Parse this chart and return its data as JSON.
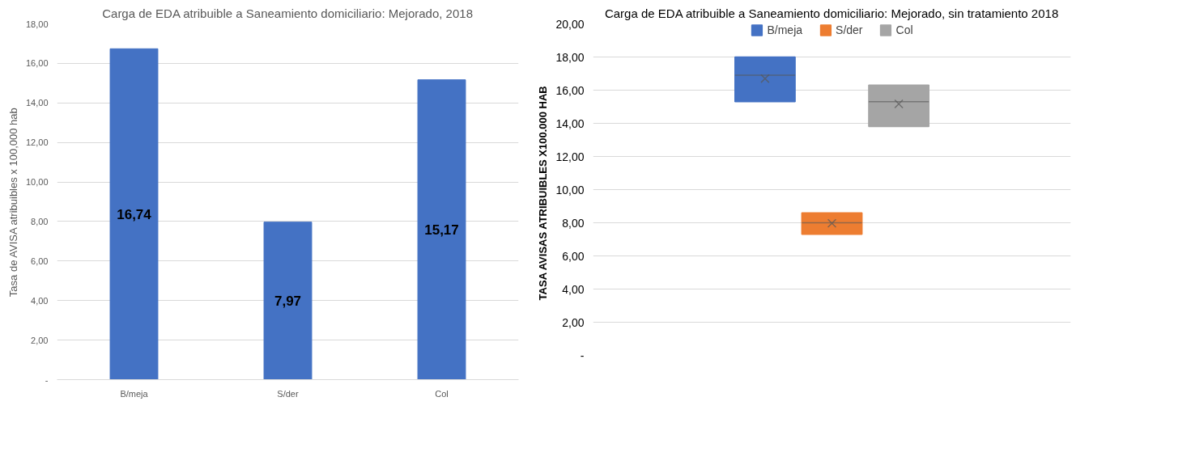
{
  "chart_data": [
    {
      "type": "bar",
      "title": "Carga de EDA atribuible a Saneamiento domiciliario: Mejorado, 2018",
      "ylabel": "Tasa de AVISA atribuibles x 100,000 hab",
      "categories": [
        "B/meja",
        "S/der",
        "Col"
      ],
      "values": [
        16.74,
        7.97,
        15.17
      ],
      "color": "#4472c4",
      "value_labels": [
        "16,74",
        "7,97",
        "15,17"
      ],
      "ylim": [
        0,
        18
      ],
      "yticks": [
        {
          "value": 0,
          "label": "-"
        },
        {
          "value": 2,
          "label": "2,00"
        },
        {
          "value": 4,
          "label": "4,00"
        },
        {
          "value": 6,
          "label": "6,00"
        },
        {
          "value": 8,
          "label": "8,00"
        },
        {
          "value": 10,
          "label": "10,00"
        },
        {
          "value": 12,
          "label": "12,00"
        },
        {
          "value": 14,
          "label": "14,00"
        },
        {
          "value": 16,
          "label": "16,00"
        },
        {
          "value": 18,
          "label": "18,00"
        }
      ],
      "grid": "y"
    },
    {
      "type": "box",
      "title": "Carga de EDA atribuible a Saneamiento domiciliario: Mejorado, sin tratamiento 2018",
      "ylabel": "TASA AVISAS ATRIBUIBLES  X100.000  HAB",
      "categories": [
        null
      ],
      "series": [
        {
          "name": "B/meja",
          "color": "#4472c4",
          "boxes": [
            {
              "low": 15.3,
              "q1": 15.3,
              "median": 16.9,
              "q3": 18.0,
              "high": 18.0,
              "mean": 16.7
            }
          ]
        },
        {
          "name": "S/der",
          "color": "#ed7d31",
          "boxes": [
            {
              "low": 7.3,
              "q1": 7.3,
              "median": 8.0,
              "q3": 8.6,
              "high": 8.6,
              "mean": 7.97
            }
          ]
        },
        {
          "name": "Col",
          "color": "#a5a5a5",
          "boxes": [
            {
              "low": 13.8,
              "q1": 13.8,
              "median": 15.3,
              "q3": 16.3,
              "high": 16.3,
              "mean": 15.17
            }
          ]
        }
      ],
      "ylim": [
        0,
        20
      ],
      "yticks": [
        {
          "value": 0,
          "label": "-"
        },
        {
          "value": 2,
          "label": "2,00"
        },
        {
          "value": 4,
          "label": "4,00"
        },
        {
          "value": 6,
          "label": "6,00"
        },
        {
          "value": 8,
          "label": "8,00"
        },
        {
          "value": 10,
          "label": "10,00"
        },
        {
          "value": 12,
          "label": "12,00"
        },
        {
          "value": 14,
          "label": "14,00"
        },
        {
          "value": 16,
          "label": "16,00"
        },
        {
          "value": 18,
          "label": "18,00"
        },
        {
          "value": 20,
          "label": "20,00"
        }
      ],
      "grid": "y",
      "legend": "top",
      "marker": "cross",
      "tick_labels": "y"
    }
  ]
}
